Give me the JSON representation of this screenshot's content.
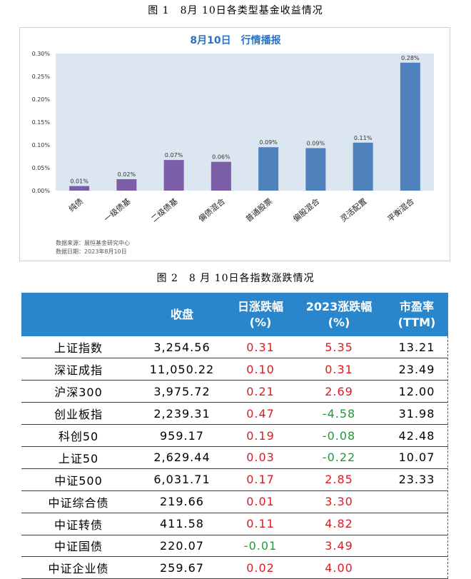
{
  "figure1": {
    "caption": "图 1　8月 10日各类型基金收益情况",
    "source_line1": "数据来源：展恒基金研究中心",
    "source_line2": "数据日期：2023年8月10日"
  },
  "figure2": {
    "caption": "图 2　8 月 10日各指数涨跌情况"
  },
  "colors": {
    "purple_bar": "#7b5ea7",
    "blue_bar": "#4f81bd",
    "plot_bg": "#dce6f1",
    "header_bg": "#2a86cc",
    "up": "#e0191e",
    "down": "#1f9a3a"
  },
  "chart_data": {
    "type": "bar",
    "title": "8月10日　行情播报",
    "categories": [
      "纯债",
      "一级债基",
      "二级债基",
      "偏债混合",
      "普通股票",
      "偏股混合",
      "灵活配置",
      "平衡混合"
    ],
    "values": [
      0.01,
      0.025,
      0.067,
      0.063,
      0.095,
      0.093,
      0.105,
      0.28
    ],
    "data_labels": [
      "0.01%",
      "0.02%",
      "0.07%",
      "0.06%",
      "0.09%",
      "0.09%",
      "0.11%",
      "0.28%"
    ],
    "bar_colors": [
      "#7b5ea7",
      "#7b5ea7",
      "#7b5ea7",
      "#7b5ea7",
      "#4f81bd",
      "#4f81bd",
      "#4f81bd",
      "#4f81bd"
    ],
    "ylim": [
      0,
      0.3
    ],
    "yticks": [
      0,
      0.05,
      0.1,
      0.15,
      0.2,
      0.25,
      0.3
    ],
    "ytick_labels": [
      "0.00%",
      "0.05%",
      "0.10%",
      "0.15%",
      "0.20%",
      "0.25%",
      "0.30%"
    ],
    "grid": false,
    "legend": "none"
  },
  "table": {
    "headers": [
      "",
      "收盘",
      "日涨跌幅\n(%)",
      "2023涨跌幅\n(%)",
      "市盈率\n(TTM)"
    ],
    "rows": [
      {
        "name": "上证指数",
        "close": "3,254.56",
        "day": "0.31",
        "day_dir": "red",
        "ytd": "5.35",
        "ytd_dir": "red",
        "pe": "13.21"
      },
      {
        "name": "深证成指",
        "close": "11,050.22",
        "day": "0.10",
        "day_dir": "red",
        "ytd": "0.31",
        "ytd_dir": "red",
        "pe": "23.49"
      },
      {
        "name": "沪深300",
        "close": "3,975.72",
        "day": "0.21",
        "day_dir": "red",
        "ytd": "2.69",
        "ytd_dir": "red",
        "pe": "12.00"
      },
      {
        "name": "创业板指",
        "close": "2,239.31",
        "day": "0.47",
        "day_dir": "red",
        "ytd": "-4.58",
        "ytd_dir": "green",
        "pe": "31.98"
      },
      {
        "name": "科创50",
        "close": "959.17",
        "day": "0.19",
        "day_dir": "red",
        "ytd": "-0.08",
        "ytd_dir": "green",
        "pe": "42.48"
      },
      {
        "name": "上证50",
        "close": "2,629.44",
        "day": "0.03",
        "day_dir": "red",
        "ytd": "-0.22",
        "ytd_dir": "green",
        "pe": "10.07"
      },
      {
        "name": "中证500",
        "close": "6,031.71",
        "day": "0.17",
        "day_dir": "red",
        "ytd": "2.85",
        "ytd_dir": "red",
        "pe": "23.33"
      },
      {
        "name": "中证综合债",
        "close": "219.66",
        "day": "0.01",
        "day_dir": "red",
        "ytd": "3.30",
        "ytd_dir": "red",
        "pe": ""
      },
      {
        "name": "中证转债",
        "close": "411.58",
        "day": "0.11",
        "day_dir": "red",
        "ytd": "4.82",
        "ytd_dir": "red",
        "pe": ""
      },
      {
        "name": "中证国债",
        "close": "220.07",
        "day": "-0.01",
        "day_dir": "green",
        "ytd": "3.49",
        "ytd_dir": "red",
        "pe": ""
      },
      {
        "name": "中证企业债",
        "close": "259.67",
        "day": "0.02",
        "day_dir": "red",
        "ytd": "4.00",
        "ytd_dir": "red",
        "pe": ""
      }
    ]
  }
}
